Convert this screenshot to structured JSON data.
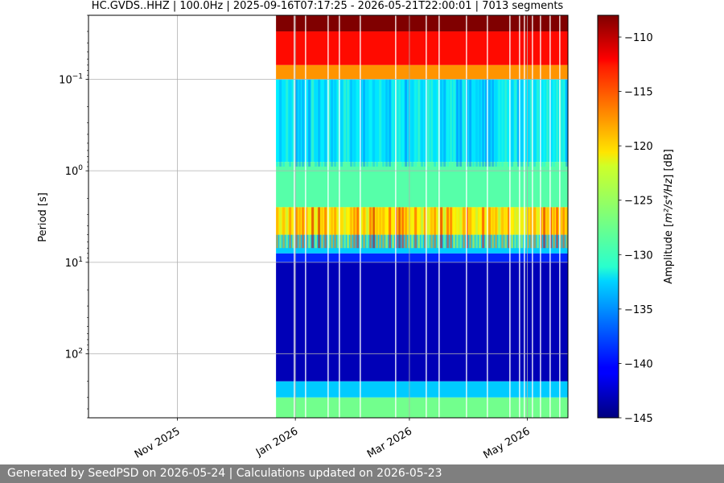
{
  "chart_data": {
    "type": "heatmap",
    "title": "HC.GVDS..HHZ | 100.0Hz | 2025-09-16T07:17:25 - 2026-05-21T22:00:01 | 7013 segments",
    "ylabel": "Period [s]",
    "xlabel": "",
    "x_tick_labels": [
      "Nov 2025",
      "Jan 2026",
      "Mar 2026",
      "May 2026"
    ],
    "x_tick_dates": [
      "2025-11-01",
      "2026-01-01",
      "2026-03-01",
      "2026-05-01"
    ],
    "x_range": [
      "2025-09-16",
      "2026-05-21"
    ],
    "y_scale": "log",
    "y_inverted": true,
    "y_range": [
      0.02,
      500
    ],
    "y_ticks": [
      {
        "value": 0.1,
        "base": "10",
        "exp": "−1"
      },
      {
        "value": 1,
        "base": "10",
        "exp": "0"
      },
      {
        "value": 10,
        "base": "10",
        "exp": "1"
      },
      {
        "value": 100,
        "base": "10",
        "exp": "2"
      }
    ],
    "data_start": "2025-12-22",
    "grid": true,
    "colormap": "jet",
    "colorbar": {
      "label_prefix": "Amplitude [",
      "label_math": "m²/s⁴/Hz",
      "label_suffix": "] [dB]",
      "range": [
        -145,
        -108
      ],
      "ticks": [
        "−110",
        "−115",
        "−120",
        "−125",
        "−130",
        "−135",
        "−140",
        "−145"
      ],
      "tick_values": [
        -110,
        -115,
        -120,
        -125,
        -130,
        -135,
        -140,
        -145
      ]
    },
    "bands": [
      {
        "period_range": [
          0.02,
          0.03
        ],
        "level_db": -108
      },
      {
        "period_range": [
          0.03,
          0.07
        ],
        "level_db": -113
      },
      {
        "period_range": [
          0.07,
          0.1
        ],
        "level_db": -118
      },
      {
        "period_range": [
          0.1,
          0.8
        ],
        "level_db": -132
      },
      {
        "period_range": [
          0.8,
          2.5
        ],
        "level_db": -128
      },
      {
        "period_range": [
          2.5,
          5
        ],
        "level_db": -121
      },
      {
        "period_range": [
          5,
          8
        ],
        "level_db": -133
      },
      {
        "period_range": [
          8,
          10
        ],
        "level_db": -139
      },
      {
        "period_range": [
          10,
          200
        ],
        "level_db": -143
      },
      {
        "period_range": [
          200,
          300
        ],
        "level_db": -133
      },
      {
        "period_range": [
          300,
          500
        ],
        "level_db": -127
      }
    ]
  },
  "footer": {
    "text": "Generated by SeedPSD on 2026-05-24 | Calculations updated on 2026-05-23"
  }
}
